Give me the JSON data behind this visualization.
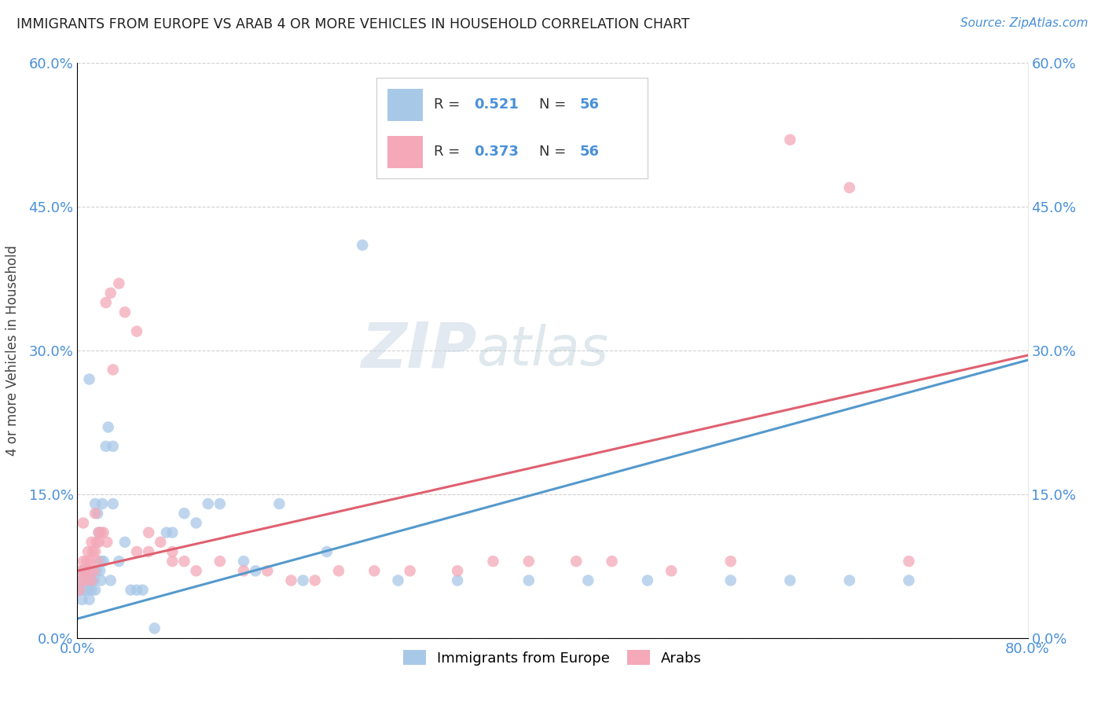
{
  "title": "IMMIGRANTS FROM EUROPE VS ARAB 4 OR MORE VEHICLES IN HOUSEHOLD CORRELATION CHART",
  "source": "Source: ZipAtlas.com",
  "ylabel": "4 or more Vehicles in Household",
  "legend_label1": "Immigrants from Europe",
  "legend_label2": "Arabs",
  "R1": "0.521",
  "N1": "56",
  "R2": "0.373",
  "N2": "56",
  "xlim": [
    0.0,
    80.0
  ],
  "ylim": [
    0.0,
    60.0
  ],
  "yticks": [
    0.0,
    15.0,
    30.0,
    45.0,
    60.0
  ],
  "color_europe": "#a8c8e8",
  "color_arab": "#f4a8b8",
  "line_color_europe": "#5599cc",
  "line_color_arab": "#e06070",
  "background_color": "#ffffff",
  "watermark_zip": "ZIP",
  "watermark_atlas": "atlas",
  "europe_x": [
    0.2,
    0.3,
    0.4,
    0.5,
    0.6,
    0.7,
    0.8,
    0.9,
    1.0,
    1.1,
    1.2,
    1.3,
    1.4,
    1.5,
    1.6,
    1.7,
    1.8,
    1.9,
    2.0,
    2.1,
    2.2,
    2.4,
    2.6,
    2.8,
    3.0,
    3.5,
    4.0,
    4.5,
    5.0,
    5.5,
    6.5,
    7.5,
    8.0,
    9.0,
    10.0,
    11.0,
    12.0,
    14.0,
    15.0,
    17.0,
    19.0,
    21.0,
    24.0,
    27.0,
    32.0,
    38.0,
    43.0,
    48.0,
    55.0,
    60.0,
    65.0,
    70.0,
    1.0,
    1.5,
    2.0,
    3.0
  ],
  "europe_y": [
    5.0,
    6.0,
    4.0,
    7.0,
    5.0,
    6.0,
    7.0,
    5.0,
    4.0,
    6.0,
    5.0,
    7.0,
    6.0,
    5.0,
    7.0,
    13.0,
    11.0,
    7.0,
    6.0,
    14.0,
    8.0,
    20.0,
    22.0,
    6.0,
    14.0,
    8.0,
    10.0,
    5.0,
    5.0,
    5.0,
    1.0,
    11.0,
    11.0,
    13.0,
    12.0,
    14.0,
    14.0,
    8.0,
    7.0,
    14.0,
    6.0,
    9.0,
    41.0,
    6.0,
    6.0,
    6.0,
    6.0,
    6.0,
    6.0,
    6.0,
    6.0,
    6.0,
    27.0,
    14.0,
    8.0,
    20.0
  ],
  "arab_x": [
    0.2,
    0.3,
    0.4,
    0.5,
    0.6,
    0.7,
    0.8,
    0.9,
    1.0,
    1.1,
    1.2,
    1.3,
    1.4,
    1.5,
    1.6,
    1.7,
    1.8,
    2.0,
    2.2,
    2.4,
    2.8,
    3.5,
    4.0,
    5.0,
    6.0,
    7.0,
    8.0,
    9.0,
    10.0,
    12.0,
    14.0,
    16.0,
    18.0,
    20.0,
    22.0,
    25.0,
    28.0,
    32.0,
    35.0,
    38.0,
    42.0,
    45.0,
    50.0,
    55.0,
    60.0,
    65.0,
    70.0,
    5.0,
    6.0,
    8.0,
    3.0,
    2.5,
    1.5,
    1.8,
    1.2,
    0.5
  ],
  "arab_y": [
    5.0,
    7.0,
    6.0,
    8.0,
    7.0,
    6.0,
    8.0,
    9.0,
    7.0,
    8.0,
    6.0,
    9.0,
    7.0,
    9.0,
    10.0,
    8.0,
    10.0,
    11.0,
    11.0,
    35.0,
    36.0,
    37.0,
    34.0,
    32.0,
    11.0,
    10.0,
    9.0,
    8.0,
    7.0,
    8.0,
    7.0,
    7.0,
    6.0,
    6.0,
    7.0,
    7.0,
    7.0,
    7.0,
    8.0,
    8.0,
    8.0,
    8.0,
    7.0,
    8.0,
    52.0,
    47.0,
    8.0,
    9.0,
    9.0,
    8.0,
    28.0,
    10.0,
    13.0,
    11.0,
    10.0,
    12.0
  ],
  "europe_line_x": [
    0.0,
    80.0
  ],
  "europe_line_y_start": 2.0,
  "europe_line_y_end": 29.0,
  "arab_line_y_start": 7.0,
  "arab_line_y_end": 29.5
}
